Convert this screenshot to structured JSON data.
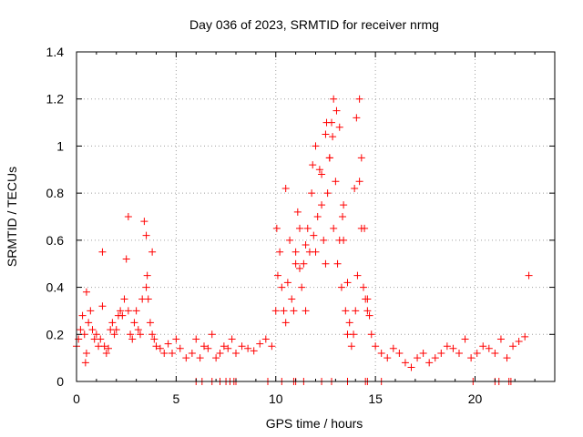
{
  "chart_data": {
    "type": "scatter",
    "title": "Day 036 of 2023, SRMTID for receiver nrmg",
    "xlabel": "GPS time / hours",
    "ylabel": "SRMTID / TECUs",
    "xlim": [
      0,
      24
    ],
    "ylim": [
      0,
      1.4
    ],
    "x_ticks": [
      0,
      5,
      10,
      15,
      20
    ],
    "y_ticks": [
      0,
      0.2,
      0.4,
      0.6,
      0.8,
      1,
      1.2,
      1.4
    ],
    "x_tick_labels": [
      "0",
      "5",
      "10",
      "15",
      "20"
    ],
    "y_tick_labels": [
      "0",
      "0.2",
      "0.4",
      "0.6",
      "0.8",
      "1",
      "1.2",
      "1.4"
    ],
    "grid": true,
    "marker": "plus",
    "series": [
      {
        "name": "SRMTID",
        "color": "#ff0000",
        "x": [
          0.0,
          0.1,
          0.2,
          0.3,
          0.4,
          0.45,
          0.5,
          0.6,
          0.7,
          0.8,
          0.9,
          1.0,
          1.1,
          1.2,
          1.3,
          1.4,
          1.5,
          1.6,
          1.7,
          1.8,
          1.9,
          2.0,
          2.1,
          2.2,
          2.3,
          2.4,
          2.5,
          2.6,
          2.7,
          2.8,
          2.9,
          3.0,
          3.1,
          3.2,
          3.3,
          3.4,
          3.5,
          3.6,
          3.7,
          3.8,
          3.9,
          4.0,
          4.2,
          4.4,
          4.6,
          4.8,
          5.0,
          5.2,
          5.5,
          5.8,
          6.0,
          6.2,
          6.4,
          6.6,
          6.8,
          7.0,
          7.2,
          7.4,
          7.6,
          7.8,
          8.0,
          8.3,
          8.6,
          8.9,
          9.2,
          9.5,
          9.8,
          10.0,
          10.1,
          10.2,
          10.3,
          10.4,
          10.5,
          10.6,
          10.7,
          10.8,
          10.9,
          11.0,
          11.1,
          11.2,
          11.3,
          11.4,
          11.5,
          11.6,
          11.7,
          11.8,
          11.9,
          12.0,
          12.1,
          12.2,
          12.3,
          12.4,
          12.5,
          12.6,
          12.7,
          12.8,
          12.9,
          13.0,
          13.1,
          13.2,
          13.3,
          13.4,
          13.5,
          13.6,
          13.7,
          13.8,
          13.9,
          14.0,
          14.1,
          14.2,
          14.3,
          14.4,
          14.5,
          14.6,
          14.7,
          14.8,
          15.0,
          15.3,
          15.6,
          15.9,
          16.2,
          16.5,
          16.8,
          17.1,
          17.4,
          17.7,
          18.0,
          18.3,
          18.6,
          18.9,
          19.2,
          19.5,
          19.8,
          20.1,
          20.4,
          20.7,
          21.0,
          21.3,
          21.6,
          21.9,
          22.2,
          22.5,
          22.7,
          0.5,
          1.3,
          2.6,
          3.5,
          3.55,
          3.8,
          10.05,
          10.5,
          11.0,
          11.2,
          11.5,
          12.0,
          12.3,
          12.5,
          12.7,
          12.9,
          13.05,
          13.2,
          13.4,
          13.6,
          14.05,
          14.2,
          14.3,
          14.45,
          14.6,
          12.85,
          11.85,
          12.55,
          13.35,
          13.95,
          6.0,
          6.3,
          6.8,
          7.2,
          7.5,
          7.7,
          7.9,
          8.0,
          9.6,
          10.3,
          10.9,
          11.0,
          11.4,
          12.3,
          12.8,
          13.6,
          14.5,
          14.6,
          15.3,
          19.9,
          21.0,
          21.2,
          21.7,
          21.8
        ],
        "y": [
          0.15,
          0.18,
          0.22,
          0.28,
          0.2,
          0.08,
          0.12,
          0.25,
          0.3,
          0.22,
          0.18,
          0.2,
          0.15,
          0.18,
          0.32,
          0.15,
          0.12,
          0.14,
          0.22,
          0.25,
          0.2,
          0.22,
          0.28,
          0.3,
          0.28,
          0.35,
          0.52,
          0.3,
          0.2,
          0.18,
          0.25,
          0.3,
          0.22,
          0.2,
          0.35,
          0.68,
          0.4,
          0.35,
          0.25,
          0.2,
          0.18,
          0.15,
          0.14,
          0.12,
          0.16,
          0.12,
          0.18,
          0.14,
          0.1,
          0.12,
          0.18,
          0.1,
          0.15,
          0.14,
          0.2,
          0.1,
          0.12,
          0.15,
          0.14,
          0.18,
          0.12,
          0.15,
          0.14,
          0.13,
          0.16,
          0.18,
          0.15,
          0.3,
          0.45,
          0.55,
          0.4,
          0.3,
          0.25,
          0.42,
          0.6,
          0.35,
          0.3,
          0.5,
          0.72,
          0.65,
          0.4,
          0.5,
          0.3,
          0.65,
          0.55,
          0.8,
          0.62,
          0.55,
          0.7,
          0.9,
          0.75,
          0.6,
          0.5,
          0.8,
          0.95,
          1.1,
          0.65,
          0.85,
          0.5,
          0.6,
          0.4,
          0.75,
          0.3,
          0.2,
          0.25,
          0.15,
          0.2,
          0.3,
          0.45,
          0.85,
          0.65,
          0.4,
          0.35,
          0.3,
          0.28,
          0.2,
          0.15,
          0.12,
          0.1,
          0.14,
          0.12,
          0.08,
          0.06,
          0.1,
          0.12,
          0.08,
          0.1,
          0.12,
          0.15,
          0.14,
          0.12,
          0.18,
          0.1,
          0.12,
          0.15,
          0.14,
          0.12,
          0.18,
          0.1,
          0.15,
          0.17,
          0.19,
          0.45,
          0.38,
          0.55,
          0.7,
          0.62,
          0.45,
          0.55,
          0.65,
          0.82,
          0.55,
          0.48,
          0.58,
          1.0,
          0.88,
          1.05,
          0.95,
          1.2,
          1.15,
          1.08,
          0.6,
          0.42,
          1.12,
          1.2,
          0.95,
          0.65,
          0.35,
          1.04,
          0.92,
          1.1,
          0.7,
          0.82,
          0.0,
          0.0,
          0.0,
          0.0,
          0.0,
          0.0,
          0.0,
          0.0,
          0.0,
          0.0,
          0.0,
          0.0,
          0.0,
          0.0,
          0.0,
          0.0,
          0.0,
          0.0,
          0.0,
          0.0,
          0.0,
          0.0,
          0.0,
          0.0
        ]
      }
    ]
  }
}
